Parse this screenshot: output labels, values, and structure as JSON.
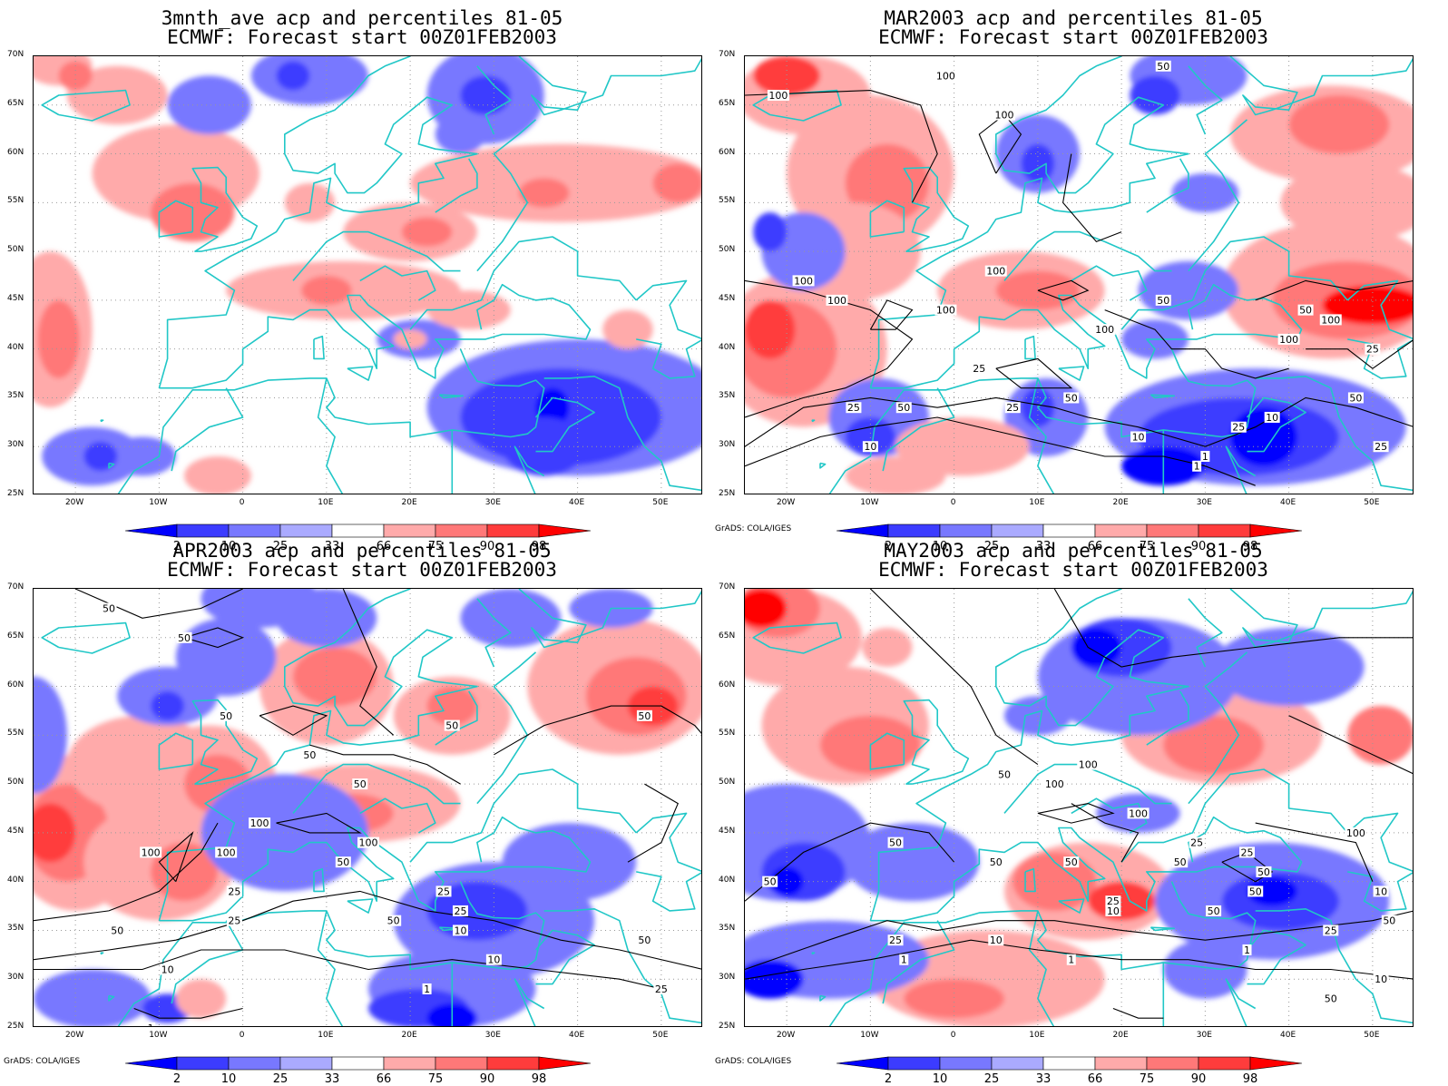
{
  "panels": [
    {
      "title_line1": "3mnth_ave acp and percentiles 81-05",
      "title_line2": "ECMWF: Forecast start 00Z01FEB2003",
      "contour_labels": [],
      "credit": ""
    },
    {
      "title_line1": "MAR2003 acp and percentiles 81-05",
      "title_line2": "ECMWF: Forecast start 00Z01FEB2003",
      "contour_labels": [
        "100",
        "100",
        "100",
        "50",
        "100",
        "100",
        "100",
        "100",
        "50",
        "100",
        "50",
        "100",
        "100",
        "25",
        "50",
        "25",
        "50",
        "10",
        "25",
        "10",
        "25",
        "10",
        "1",
        "1",
        "50",
        "25",
        "25"
      ],
      "credit": "GrADS: COLA/IGES"
    },
    {
      "title_line1": "APR2003 acp and percentiles 81-05",
      "title_line2": "ECMWF: Forecast start 00Z01FEB2003",
      "contour_labels": [
        "50",
        "50",
        "50",
        "50",
        "50",
        "50",
        "50",
        "100",
        "100",
        "100",
        "100",
        "50",
        "25",
        "25",
        "50",
        "25",
        "25",
        "50",
        "10",
        "10",
        "10",
        "1",
        "1",
        "25",
        "50"
      ],
      "credit": "GrADS: COLA/IGES"
    },
    {
      "title_line1": "MAY2003 acp and percentiles 81-05",
      "title_line2": "ECMWF: Forecast start 00Z01FEB2003",
      "contour_labels": [
        "50",
        "50",
        "50",
        "100",
        "100",
        "100",
        "100",
        "50",
        "50",
        "50",
        "25",
        "25",
        "50",
        "50",
        "25",
        "10",
        "50",
        "25",
        "10",
        "25",
        "10",
        "1",
        "1",
        "1",
        "50",
        "10",
        "50"
      ],
      "credit": "GrADS: COLA/IGES"
    }
  ],
  "axes": {
    "lat_labels": [
      "70N",
      "65N",
      "60N",
      "55N",
      "50N",
      "45N",
      "40N",
      "35N",
      "30N",
      "25N"
    ],
    "lon_labels": [
      "20W",
      "10W",
      "0",
      "10E",
      "20E",
      "30E",
      "40E",
      "50E"
    ]
  },
  "colorbar": {
    "labels": [
      "2",
      "10",
      "25",
      "33",
      "66",
      "75",
      "90",
      "98"
    ],
    "colors": [
      "#0000ff",
      "#3c3cff",
      "#7878ff",
      "#aaaaff",
      "#ffffff",
      "#ffaaaa",
      "#ff7878",
      "#ff3c3c",
      "#ff0000"
    ]
  },
  "colors": {
    "coast": "#21c7c7",
    "contour": "#000000",
    "grid": "#999999"
  }
}
